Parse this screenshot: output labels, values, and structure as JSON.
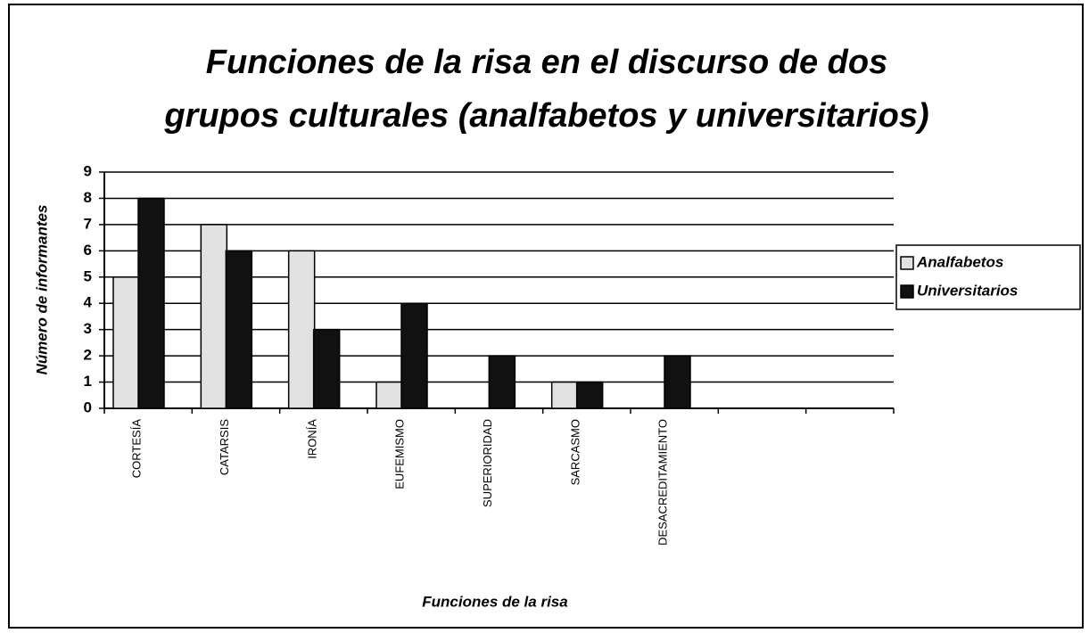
{
  "chart_data": {
    "type": "bar",
    "title": [
      "Funciones de la risa en el discurso de dos",
      "grupos culturales (analfabetos y universitarios)"
    ],
    "x_label": "Funciones de la risa",
    "y_label": "Número de informantes",
    "categories": [
      "CORTESÍA",
      "CATARSIS",
      "IRONÍA",
      "EUFEMISMO",
      "SUPERIORIDAD",
      "SARCASMO",
      "DESACREDITAMIENTO",
      null,
      null
    ],
    "series": [
      {
        "name": "Analfabetos",
        "color": "#e2e2e2",
        "values": [
          5,
          7,
          6,
          1,
          0,
          1,
          0,
          null,
          null
        ]
      },
      {
        "name": "Universitarios",
        "color": "#111111",
        "values": [
          8,
          6,
          3,
          4,
          2,
          1,
          2,
          null,
          null
        ]
      }
    ],
    "ylim": [
      0,
      9
    ],
    "yticks": [
      0,
      1,
      2,
      3,
      4,
      5,
      6,
      7,
      8,
      9
    ],
    "grid": true,
    "legend": "right"
  }
}
